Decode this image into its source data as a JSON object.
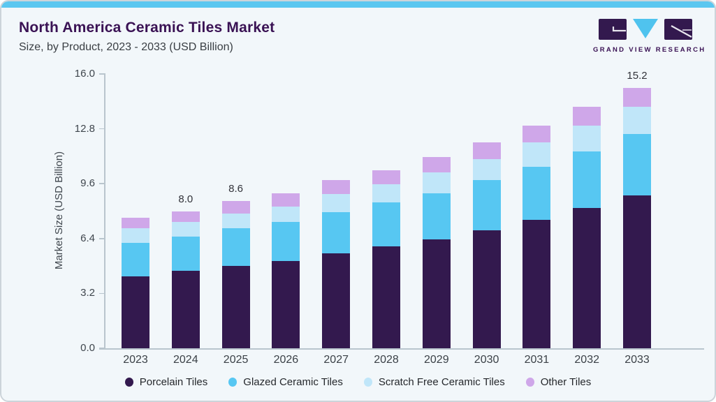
{
  "header": {
    "title": "North America Ceramic Tiles Market",
    "subtitle": "Size, by Product, 2023 - 2033 (USD Billion)"
  },
  "logo": {
    "text": "GRAND VIEW RESEARCH",
    "mark_purple": "#33194e",
    "mark_blue": "#4fc3ee"
  },
  "colors": {
    "card_background": "#f2f7fa",
    "top_accent": "#5bc7f0",
    "title_purple": "#3a1254",
    "axis_gray": "#b9c5cd"
  },
  "chart_data": {
    "type": "bar",
    "stacked": true,
    "title": "North America Ceramic Tiles Market",
    "subtitle": "Size, by Product, 2023 - 2033 (USD Billion)",
    "xlabel": "",
    "ylabel": "Market Size (USD Billion)",
    "ylim": [
      0,
      16
    ],
    "yticks": [
      0,
      3.2,
      6.4,
      9.6,
      12.8,
      16
    ],
    "ytick_labels": [
      "0.0",
      "3.2",
      "6.4",
      "9.6",
      "12.8",
      "16.0"
    ],
    "grid": false,
    "legend_position": "bottom",
    "categories": [
      "2023",
      "2024",
      "2025",
      "2026",
      "2027",
      "2028",
      "2029",
      "2030",
      "2031",
      "2032",
      "2033"
    ],
    "series": [
      {
        "name": "Porcelain Tiles",
        "color": "#33194e",
        "values": [
          4.2,
          4.5,
          4.8,
          5.1,
          5.55,
          5.95,
          6.35,
          6.9,
          7.5,
          8.2,
          8.9
        ]
      },
      {
        "name": "Glazed Ceramic Tiles",
        "color": "#57c7f2",
        "values": [
          1.95,
          2.0,
          2.2,
          2.25,
          2.4,
          2.55,
          2.7,
          2.9,
          3.1,
          3.3,
          3.6
        ]
      },
      {
        "name": "Scratch Free Ceramic Tiles",
        "color": "#c0e6f9",
        "values": [
          0.85,
          0.85,
          0.85,
          0.9,
          1.05,
          1.05,
          1.2,
          1.25,
          1.4,
          1.5,
          1.6
        ]
      },
      {
        "name": "Other Tiles",
        "color": "#cfa7e9",
        "values": [
          0.6,
          0.65,
          0.75,
          0.8,
          0.8,
          0.85,
          0.9,
          0.95,
          1.0,
          1.1,
          1.1
        ]
      }
    ],
    "totals": [
      7.6,
      8.0,
      8.6,
      9.05,
      9.8,
      10.4,
      11.15,
      12.0,
      13.0,
      14.1,
      15.2
    ],
    "bar_value_labels": [
      "",
      "8.0",
      "8.6",
      "",
      "",
      "",
      "",
      "",
      "",
      "",
      "15.2"
    ],
    "legend": [
      "Porcelain Tiles",
      "Glazed Ceramic Tiles",
      "Scratch Free Ceramic Tiles",
      "Other Tiles"
    ]
  }
}
